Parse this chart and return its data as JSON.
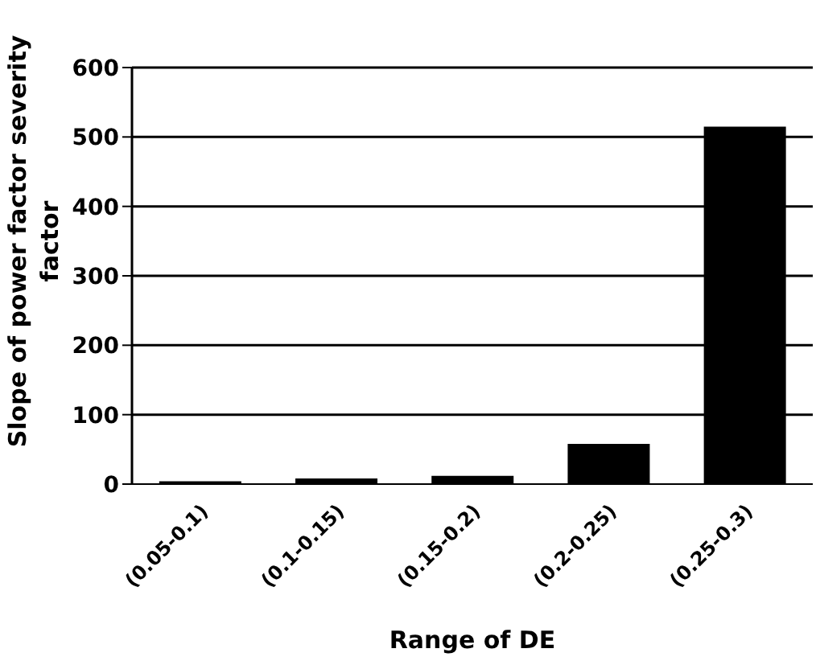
{
  "chart_data": {
    "type": "bar",
    "xlabel": "Range of DE",
    "ylabel": "Slope of power factor severity factor",
    "categories": [
      "(0.05-0.1)",
      "(0.1-0.15)",
      "(0.15-0.2)",
      "(0.2-0.25)",
      "(0.25-0.3)"
    ],
    "values": [
      4,
      8,
      12,
      58,
      515
    ],
    "color": "#000000",
    "ylim": [
      0,
      600
    ],
    "yticks": [
      0,
      100,
      200,
      300,
      400,
      500,
      600
    ],
    "grid": "y",
    "legend": false
  }
}
